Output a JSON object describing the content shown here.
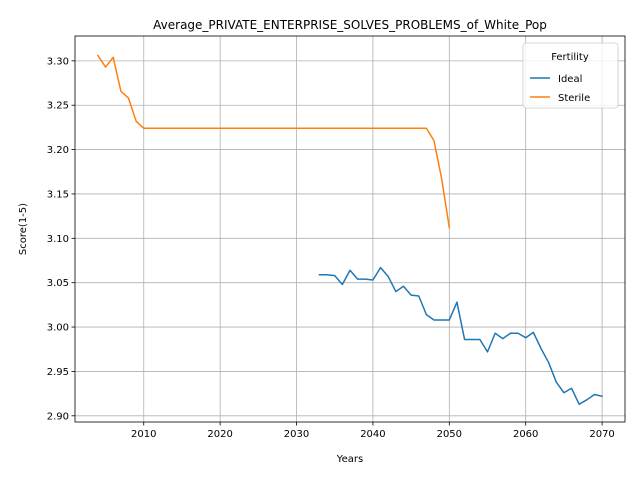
{
  "chart_data": {
    "type": "line",
    "title": "Average_PRIVATE_ENTERPRISE_SOLVES_PROBLEMS_of_White_Pop",
    "xlabel": "Years",
    "ylabel": "Score(1-5)",
    "xlim": [
      2001,
      2073
    ],
    "ylim": [
      2.893,
      3.328
    ],
    "xticks": [
      2010,
      2020,
      2030,
      2040,
      2050,
      2060,
      2070
    ],
    "yticks": [
      2.9,
      2.95,
      3.0,
      3.05,
      3.1,
      3.15,
      3.2,
      3.25,
      3.3
    ],
    "ytick_labels": [
      "2.90",
      "2.95",
      "3.00",
      "3.05",
      "3.10",
      "3.15",
      "3.20",
      "3.25",
      "3.30"
    ],
    "grid": true,
    "legend": {
      "title": "Fertility",
      "position": "top-right"
    },
    "series": [
      {
        "name": "Ideal",
        "color": "#1f77b4",
        "x": [
          2033,
          2034,
          2035,
          2036,
          2037,
          2038,
          2039,
          2040,
          2041,
          2042,
          2043,
          2044,
          2045,
          2046,
          2047,
          2048,
          2049,
          2050,
          2051,
          2052,
          2053,
          2054,
          2055,
          2056,
          2057,
          2058,
          2059,
          2060,
          2061,
          2062,
          2063,
          2064,
          2065,
          2066,
          2067,
          2068,
          2069,
          2070
        ],
        "y": [
          3.059,
          3.059,
          3.058,
          3.048,
          3.064,
          3.054,
          3.054,
          3.053,
          3.067,
          3.057,
          3.04,
          3.046,
          3.036,
          3.035,
          3.014,
          3.008,
          3.008,
          3.008,
          3.028,
          2.986,
          2.986,
          2.986,
          2.972,
          2.993,
          2.987,
          2.993,
          2.993,
          2.988,
          2.994,
          2.976,
          2.96,
          2.938,
          2.926,
          2.931,
          2.913,
          2.918,
          2.924,
          2.922
        ]
      },
      {
        "name": "Sterile",
        "color": "#ff7f0e",
        "x": [
          2004,
          2005,
          2006,
          2007,
          2008,
          2009,
          2010,
          2011,
          2015,
          2020,
          2025,
          2030,
          2035,
          2040,
          2045,
          2046,
          2047,
          2048,
          2049,
          2050
        ],
        "y": [
          3.306,
          3.293,
          3.304,
          3.266,
          3.258,
          3.232,
          3.224,
          3.224,
          3.224,
          3.224,
          3.224,
          3.224,
          3.224,
          3.224,
          3.224,
          3.224,
          3.224,
          3.21,
          3.167,
          3.112
        ]
      }
    ]
  }
}
